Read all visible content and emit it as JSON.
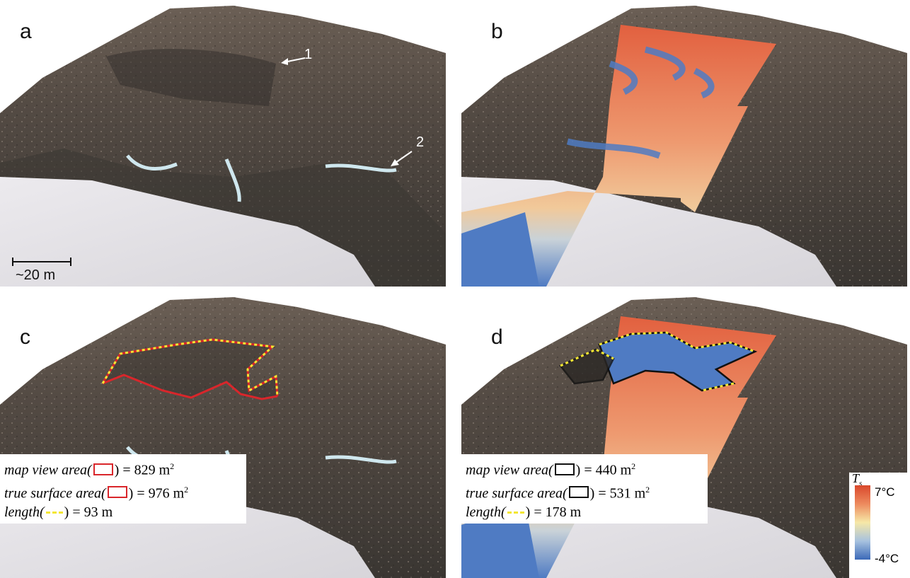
{
  "panels": {
    "a": {
      "letter": "a",
      "arrows": [
        "1",
        "2"
      ],
      "scalebar": "~20 m"
    },
    "b": {
      "letter": "b"
    },
    "c": {
      "letter": "c",
      "legend": {
        "map_area_label": "map view area(",
        "map_area_value": ") = 829 m",
        "true_area_label": "true surface area(",
        "true_area_value": ") = 976 m",
        "length_label": "length(",
        "length_value": ") = 93 m",
        "superscript": "2",
        "outline_color": "#d9262b"
      }
    },
    "d": {
      "letter": "d",
      "legend": {
        "map_area_label": "map view area(",
        "map_area_value": ") = 440 m",
        "true_area_label": "true surface area(",
        "true_area_value": ") = 531 m",
        "length_label": "length(",
        "length_value": ") = 178 m",
        "superscript": "2",
        "outline_color": "#111111"
      }
    }
  },
  "colorbar": {
    "symbol": "T",
    "subscript": "s",
    "max_label": "7°C",
    "min_label": "-4°C",
    "colors": [
      "#d9482b",
      "#ed8a5e",
      "#f6e8a7",
      "#a7c2df",
      "#3b69b8"
    ]
  },
  "colors": {
    "rock": "#4a4540",
    "snow": "#e4e3e6",
    "ice": "#cfe7ee",
    "boundary_dash": "#f3e633"
  }
}
